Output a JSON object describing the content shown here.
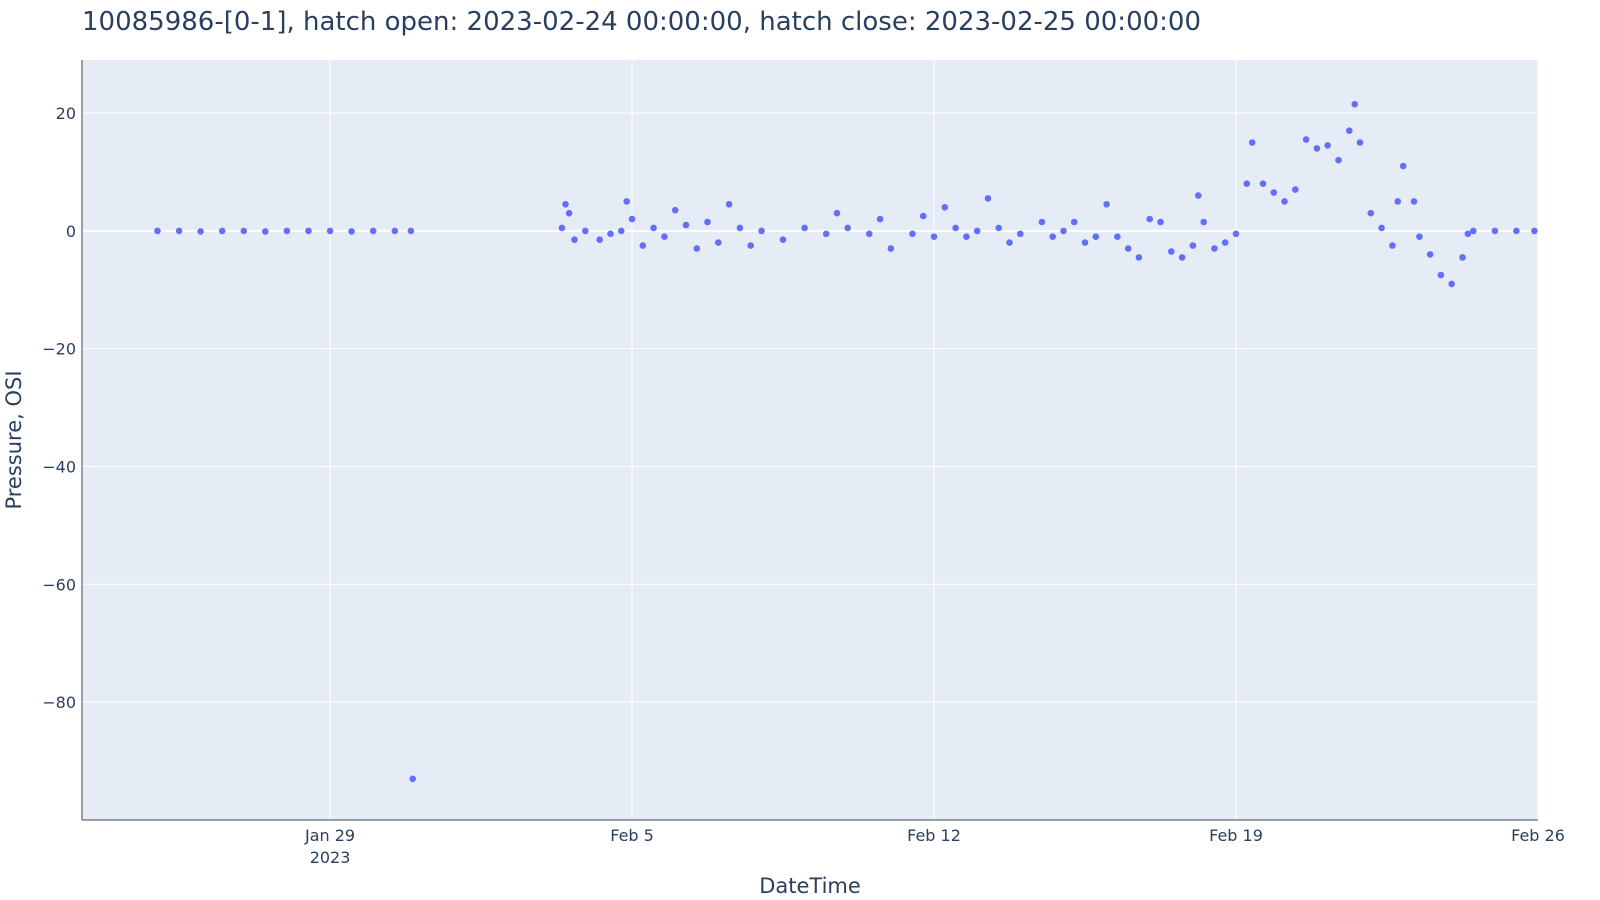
{
  "chart_data": {
    "type": "scatter",
    "title": "10085986-[0-1], hatch open: 2023-02-24 00:00:00, hatch close: 2023-02-25 00:00:00",
    "xlabel": "DateTime",
    "ylabel": "Pressure, OSI",
    "x_axis_type": "date",
    "xlim": [
      "2023-01-23 06:00",
      "2023-02-26 00:00"
    ],
    "ylim": [
      -100,
      29
    ],
    "x_ticks": [
      {
        "value": "2023-01-29",
        "label": "Jan 29",
        "sublabel": "2023"
      },
      {
        "value": "2023-02-05",
        "label": "Feb 5",
        "sublabel": ""
      },
      {
        "value": "2023-02-12",
        "label": "Feb 12",
        "sublabel": ""
      },
      {
        "value": "2023-02-19",
        "label": "Feb 19",
        "sublabel": ""
      },
      {
        "value": "2023-02-26",
        "label": "Feb 26",
        "sublabel": ""
      }
    ],
    "y_ticks": [
      {
        "value": 20,
        "label": "20"
      },
      {
        "value": 0,
        "label": "0"
      },
      {
        "value": -20,
        "label": "−20"
      },
      {
        "value": -40,
        "label": "−40"
      },
      {
        "value": -60,
        "label": "−60"
      },
      {
        "value": -80,
        "label": "−80"
      }
    ],
    "grid": true,
    "marker_color": "#636efa",
    "plot_background": "#e5ecf6",
    "series": [
      {
        "values": [
          [
            "2023-01-25 00:00",
            0
          ],
          [
            "2023-01-25 12:00",
            0
          ],
          [
            "2023-01-26 00:00",
            -0.1
          ],
          [
            "2023-01-26 12:00",
            0
          ],
          [
            "2023-01-27 00:00",
            0
          ],
          [
            "2023-01-27 12:00",
            -0.1
          ],
          [
            "2023-01-28 00:00",
            0
          ],
          [
            "2023-01-28 12:00",
            0
          ],
          [
            "2023-01-29 00:00",
            0
          ],
          [
            "2023-01-29 12:00",
            -0.1
          ],
          [
            "2023-01-30 00:00",
            0
          ],
          [
            "2023-01-30 12:00",
            0
          ],
          [
            "2023-01-30 21:00",
            0
          ],
          [
            "2023-01-30 22:00",
            -93
          ],
          [
            "2023-02-03 09:00",
            0.5
          ],
          [
            "2023-02-03 11:00",
            4.5
          ],
          [
            "2023-02-03 13:00",
            3
          ],
          [
            "2023-02-03 16:00",
            -1.5
          ],
          [
            "2023-02-03 22:00",
            0
          ],
          [
            "2023-02-04 06:00",
            -1.5
          ],
          [
            "2023-02-04 12:00",
            -0.5
          ],
          [
            "2023-02-04 18:00",
            0
          ],
          [
            "2023-02-04 21:00",
            5
          ],
          [
            "2023-02-05 00:00",
            2
          ],
          [
            "2023-02-05 06:00",
            -2.5
          ],
          [
            "2023-02-05 12:00",
            0.5
          ],
          [
            "2023-02-05 18:00",
            -1
          ],
          [
            "2023-02-06 00:00",
            3.5
          ],
          [
            "2023-02-06 06:00",
            1
          ],
          [
            "2023-02-06 12:00",
            -3
          ],
          [
            "2023-02-06 18:00",
            1.5
          ],
          [
            "2023-02-07 00:00",
            -2
          ],
          [
            "2023-02-07 06:00",
            4.5
          ],
          [
            "2023-02-07 12:00",
            0.5
          ],
          [
            "2023-02-07 18:00",
            -2.5
          ],
          [
            "2023-02-08 00:00",
            0
          ],
          [
            "2023-02-08 12:00",
            -1.5
          ],
          [
            "2023-02-09 00:00",
            0.5
          ],
          [
            "2023-02-09 12:00",
            -0.5
          ],
          [
            "2023-02-09 18:00",
            3
          ],
          [
            "2023-02-10 00:00",
            0.5
          ],
          [
            "2023-02-10 12:00",
            -0.5
          ],
          [
            "2023-02-10 18:00",
            2
          ],
          [
            "2023-02-11 00:00",
            -3
          ],
          [
            "2023-02-11 12:00",
            -0.5
          ],
          [
            "2023-02-11 18:00",
            2.5
          ],
          [
            "2023-02-12 00:00",
            -1
          ],
          [
            "2023-02-12 06:00",
            4
          ],
          [
            "2023-02-12 12:00",
            0.5
          ],
          [
            "2023-02-12 18:00",
            -1
          ],
          [
            "2023-02-13 00:00",
            0
          ],
          [
            "2023-02-13 06:00",
            5.5
          ],
          [
            "2023-02-13 12:00",
            0.5
          ],
          [
            "2023-02-13 18:00",
            -2
          ],
          [
            "2023-02-14 00:00",
            -0.5
          ],
          [
            "2023-02-14 12:00",
            1.5
          ],
          [
            "2023-02-14 18:00",
            -1
          ],
          [
            "2023-02-15 00:00",
            0
          ],
          [
            "2023-02-15 06:00",
            1.5
          ],
          [
            "2023-02-15 12:00",
            -2
          ],
          [
            "2023-02-15 18:00",
            -1
          ],
          [
            "2023-02-16 00:00",
            4.5
          ],
          [
            "2023-02-16 06:00",
            -1
          ],
          [
            "2023-02-16 12:00",
            -3
          ],
          [
            "2023-02-16 18:00",
            -4.5
          ],
          [
            "2023-02-17 00:00",
            2
          ],
          [
            "2023-02-17 06:00",
            1.5
          ],
          [
            "2023-02-17 12:00",
            -3.5
          ],
          [
            "2023-02-17 18:00",
            -4.5
          ],
          [
            "2023-02-18 00:00",
            -2.5
          ],
          [
            "2023-02-18 03:00",
            6
          ],
          [
            "2023-02-18 06:00",
            1.5
          ],
          [
            "2023-02-18 12:00",
            -3
          ],
          [
            "2023-02-18 18:00",
            -2
          ],
          [
            "2023-02-19 00:00",
            -0.5
          ],
          [
            "2023-02-19 06:00",
            8
          ],
          [
            "2023-02-19 09:00",
            15
          ],
          [
            "2023-02-19 15:00",
            8
          ],
          [
            "2023-02-19 21:00",
            6.5
          ],
          [
            "2023-02-20 03:00",
            5
          ],
          [
            "2023-02-20 09:00",
            7
          ],
          [
            "2023-02-20 15:00",
            15.5
          ],
          [
            "2023-02-20 21:00",
            14
          ],
          [
            "2023-02-21 03:00",
            14.5
          ],
          [
            "2023-02-21 09:00",
            12
          ],
          [
            "2023-02-21 15:00",
            17
          ],
          [
            "2023-02-21 18:00",
            21.5
          ],
          [
            "2023-02-21 21:00",
            15
          ],
          [
            "2023-02-22 03:00",
            3
          ],
          [
            "2023-02-22 09:00",
            0.5
          ],
          [
            "2023-02-22 15:00",
            -2.5
          ],
          [
            "2023-02-22 18:00",
            5
          ],
          [
            "2023-02-22 21:00",
            11
          ],
          [
            "2023-02-23 03:00",
            5
          ],
          [
            "2023-02-23 06:00",
            -1
          ],
          [
            "2023-02-23 12:00",
            -4
          ],
          [
            "2023-02-23 18:00",
            -7.5
          ],
          [
            "2023-02-24 00:00",
            -9
          ],
          [
            "2023-02-24 06:00",
            -4.5
          ],
          [
            "2023-02-24 09:00",
            -0.5
          ],
          [
            "2023-02-24 12:00",
            0
          ],
          [
            "2023-02-25 00:00",
            0
          ],
          [
            "2023-02-25 12:00",
            0
          ],
          [
            "2023-02-25 22:00",
            0
          ]
        ]
      }
    ]
  }
}
